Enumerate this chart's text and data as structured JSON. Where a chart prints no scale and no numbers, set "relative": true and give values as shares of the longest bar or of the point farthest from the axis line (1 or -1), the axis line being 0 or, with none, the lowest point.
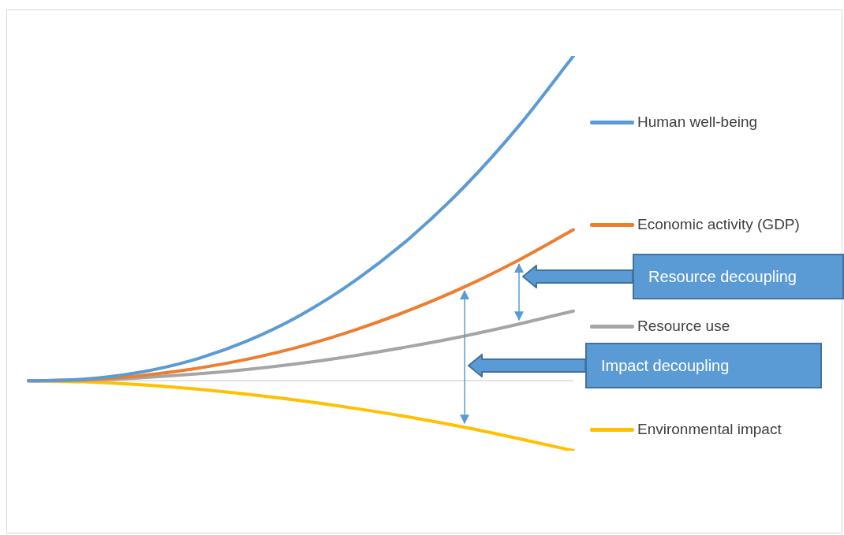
{
  "chart_data": {
    "type": "line",
    "relative": true,
    "legend": "right",
    "marker": "none",
    "line_style": "solid",
    "categories": [
      null,
      null,
      null,
      null,
      null,
      null,
      null,
      null,
      null,
      null,
      null
    ],
    "series": [
      {
        "name": "Human well-being",
        "color": "#5b9bd5",
        "values": [
          0,
          0.005,
          0.025,
          0.063,
          0.122,
          0.203,
          0.309,
          0.44,
          0.598,
          0.785,
          1
        ]
      },
      {
        "name": "Economic activity (GDP)",
        "color": "#ed7d31",
        "values": [
          0,
          0.003,
          0.015,
          0.036,
          0.066,
          0.106,
          0.157,
          0.218,
          0.289,
          0.372,
          0.465
        ]
      },
      {
        "name": "Resource use",
        "color": "#a5a5a5",
        "values": [
          0,
          0.002,
          0.009,
          0.02,
          0.035,
          0.054,
          0.078,
          0.106,
          0.138,
          0.175,
          0.215
        ]
      },
      {
        "name": "Environmental impact",
        "color": "#ffc000",
        "values": [
          0,
          -0.003,
          -0.011,
          -0.024,
          -0.041,
          -0.061,
          -0.085,
          -0.112,
          -0.143,
          -0.178,
          -0.215
        ]
      }
    ],
    "annotations": [
      "Resource decoupling",
      "Impact decoupling"
    ]
  }
}
